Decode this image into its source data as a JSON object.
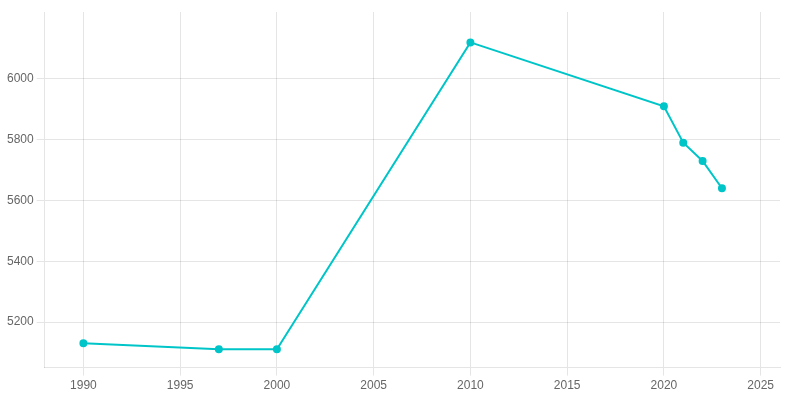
{
  "chart_data": {
    "type": "line",
    "x": [
      1990,
      1997,
      2000,
      2010,
      2020,
      2021,
      2022,
      2023
    ],
    "values": [
      5130,
      5110,
      5110,
      6120,
      5910,
      5790,
      5730,
      5640
    ],
    "color": "#00C5C8",
    "marker": "circle",
    "xlim": [
      1988,
      2026
    ],
    "ylim": [
      5050,
      6220
    ],
    "xticks": [
      1990,
      1995,
      2000,
      2005,
      2010,
      2015,
      2020,
      2025
    ],
    "yticks": [
      5200,
      5400,
      5600,
      5800,
      6000
    ],
    "grid": true
  }
}
